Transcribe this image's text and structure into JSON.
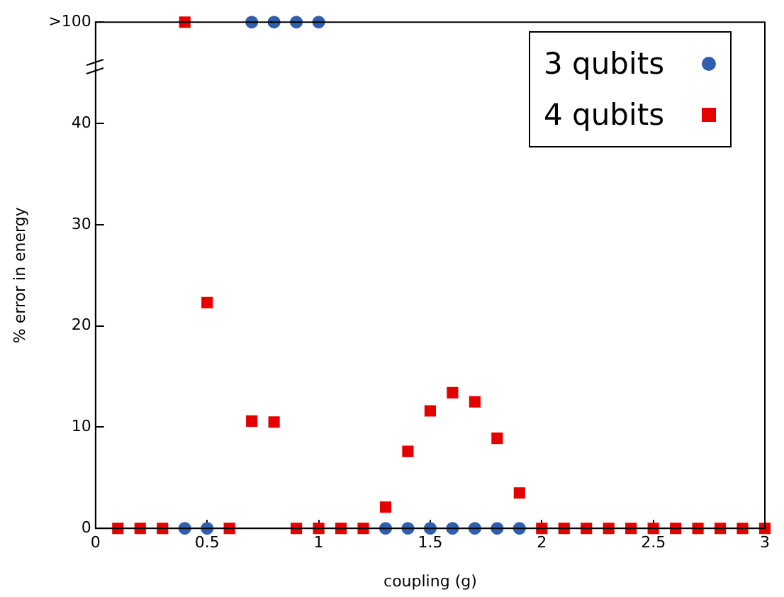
{
  "chart_data": {
    "type": "scatter",
    "xlabel": "coupling (g)",
    "ylabel": "% error in energy",
    "xlim": [
      0,
      3
    ],
    "xticks": [
      0,
      0.5,
      1,
      1.5,
      2,
      2.5,
      3
    ],
    "ylim": [
      0,
      50
    ],
    "yticks": [
      0,
      10,
      20,
      30,
      40,
      {
        "value": 50,
        "label": ">100"
      }
    ],
    "grid": false,
    "legend": "top right",
    "series": [
      {
        "name": "3 qubits",
        "color": "#2f5fae",
        "marker": "circle",
        "x": [
          0.4,
          0.5,
          0.7,
          0.8,
          0.9,
          1.0,
          1.3,
          1.4,
          1.5,
          1.6,
          1.7,
          1.8,
          1.9
        ],
        "values": [
          0,
          0,
          50,
          50,
          50,
          50,
          0,
          0,
          0,
          0,
          0,
          0,
          0
        ]
      },
      {
        "name": "4 qubits",
        "color": "#e50000",
        "marker": "square",
        "x": [
          0.1,
          0.2,
          0.3,
          0.4,
          0.5,
          0.6,
          0.7,
          0.8,
          0.9,
          1.0,
          1.1,
          1.2,
          1.3,
          1.4,
          1.5,
          1.6,
          1.7,
          1.8,
          1.9,
          2.0,
          2.1,
          2.2,
          2.3,
          2.4,
          2.5,
          2.6,
          2.7,
          2.8,
          2.9,
          3.0
        ],
        "values": [
          0,
          0,
          0,
          50,
          22.3,
          0,
          10.6,
          10.5,
          0,
          0,
          0,
          0,
          2.1,
          7.6,
          11.6,
          13.4,
          12.5,
          8.9,
          3.5,
          0,
          0,
          0,
          0,
          0,
          0,
          0,
          0,
          0,
          0,
          0
        ]
      }
    ]
  }
}
